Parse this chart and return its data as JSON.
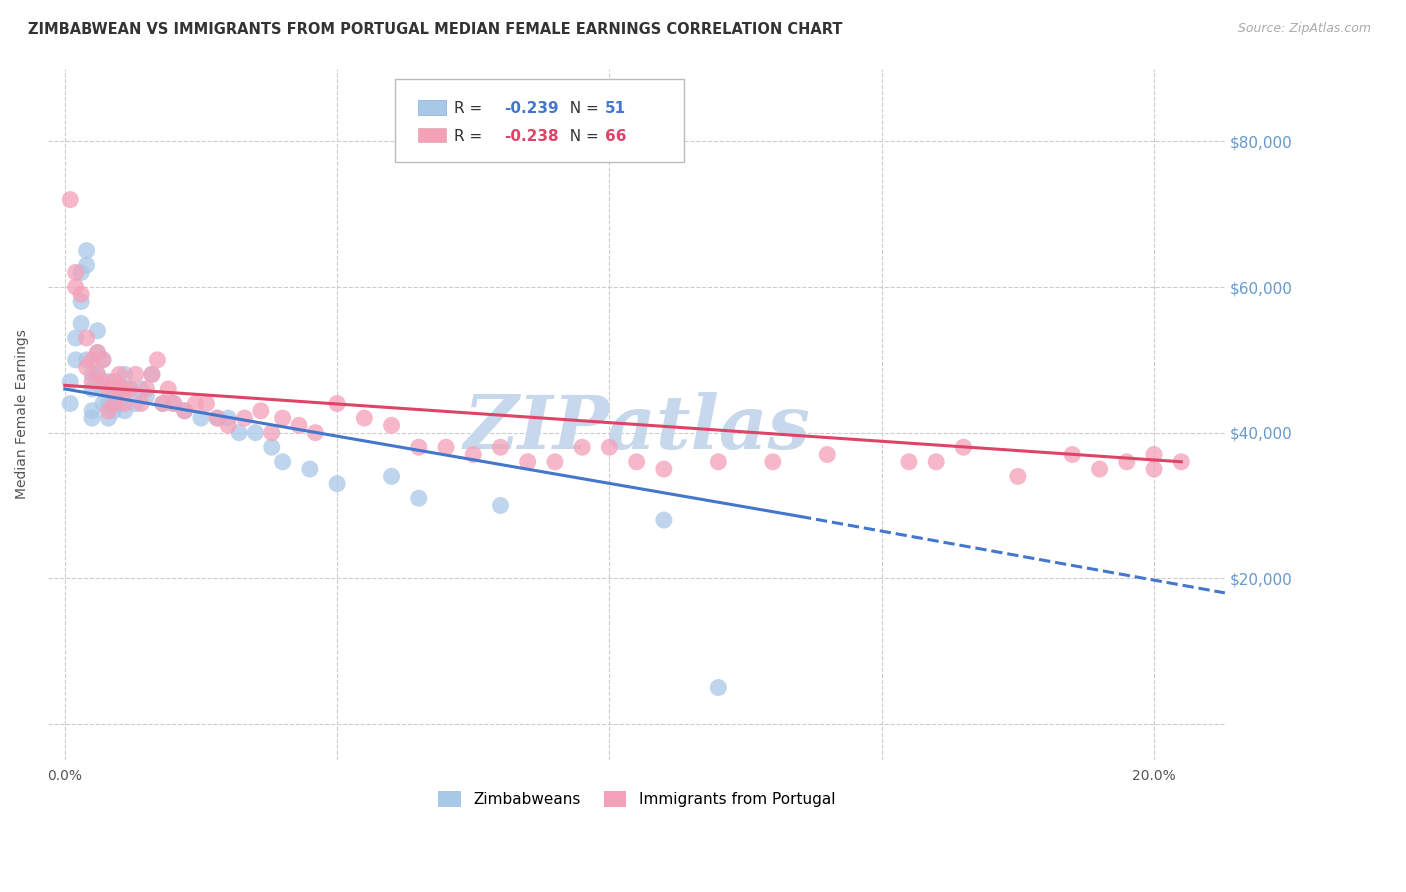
{
  "title": "ZIMBABWEAN VS IMMIGRANTS FROM PORTUGAL MEDIAN FEMALE EARNINGS CORRELATION CHART",
  "source": "Source: ZipAtlas.com",
  "ylabel": "Median Female Earnings",
  "x_ticks": [
    0.0,
    0.05,
    0.1,
    0.15,
    0.2
  ],
  "x_tick_labels": [
    "0.0%",
    "",
    "",
    "",
    "20.0%"
  ],
  "y_ticks": [
    0,
    20000,
    40000,
    60000,
    80000
  ],
  "y_tick_labels": [
    "",
    "$20,000",
    "$40,000",
    "$60,000",
    "$80,000"
  ],
  "xlim": [
    -0.003,
    0.213
  ],
  "ylim": [
    -5000,
    90000
  ],
  "legend_entries": [
    {
      "label": "Zimbabweans",
      "color": "#a8c8e8",
      "R": "-0.239",
      "N": "51"
    },
    {
      "label": "Immigrants from Portugal",
      "color": "#f4a0b8",
      "R": "-0.238",
      "N": "66"
    }
  ],
  "background_color": "#ffffff",
  "grid_color": "#cccccc",
  "watermark": "ZIPatlas",
  "watermark_color": "#c8d8ec",
  "title_color": "#333333",
  "right_label_color": "#6699cc",
  "zim_scatter_x": [
    0.001,
    0.001,
    0.002,
    0.002,
    0.003,
    0.003,
    0.003,
    0.004,
    0.004,
    0.004,
    0.005,
    0.005,
    0.005,
    0.005,
    0.006,
    0.006,
    0.006,
    0.007,
    0.007,
    0.007,
    0.008,
    0.008,
    0.008,
    0.009,
    0.009,
    0.01,
    0.01,
    0.011,
    0.011,
    0.012,
    0.013,
    0.014,
    0.015,
    0.016,
    0.018,
    0.02,
    0.022,
    0.025,
    0.028,
    0.03,
    0.032,
    0.035,
    0.038,
    0.04,
    0.045,
    0.05,
    0.06,
    0.065,
    0.08,
    0.11,
    0.12
  ],
  "zim_scatter_y": [
    44000,
    47000,
    50000,
    53000,
    55000,
    58000,
    62000,
    63000,
    65000,
    50000,
    46000,
    48000,
    43000,
    42000,
    51000,
    54000,
    48000,
    50000,
    46000,
    44000,
    47000,
    44000,
    42000,
    45000,
    43000,
    46000,
    44000,
    48000,
    43000,
    46000,
    44000,
    46000,
    45000,
    48000,
    44000,
    44000,
    43000,
    42000,
    42000,
    42000,
    40000,
    40000,
    38000,
    36000,
    35000,
    33000,
    34000,
    31000,
    30000,
    28000,
    5000
  ],
  "port_scatter_x": [
    0.001,
    0.002,
    0.002,
    0.003,
    0.004,
    0.004,
    0.005,
    0.005,
    0.006,
    0.006,
    0.007,
    0.007,
    0.008,
    0.008,
    0.009,
    0.009,
    0.01,
    0.01,
    0.011,
    0.011,
    0.012,
    0.013,
    0.014,
    0.015,
    0.016,
    0.017,
    0.018,
    0.019,
    0.02,
    0.022,
    0.024,
    0.026,
    0.028,
    0.03,
    0.033,
    0.036,
    0.038,
    0.04,
    0.043,
    0.046,
    0.05,
    0.055,
    0.06,
    0.065,
    0.07,
    0.075,
    0.08,
    0.085,
    0.09,
    0.095,
    0.1,
    0.105,
    0.11,
    0.12,
    0.13,
    0.14,
    0.155,
    0.16,
    0.165,
    0.175,
    0.185,
    0.19,
    0.195,
    0.2,
    0.2,
    0.205
  ],
  "port_scatter_y": [
    72000,
    62000,
    60000,
    59000,
    53000,
    49000,
    50000,
    47000,
    51000,
    48000,
    50000,
    47000,
    46000,
    43000,
    47000,
    44000,
    46000,
    48000,
    44000,
    46000,
    46000,
    48000,
    44000,
    46000,
    48000,
    50000,
    44000,
    46000,
    44000,
    43000,
    44000,
    44000,
    42000,
    41000,
    42000,
    43000,
    40000,
    42000,
    41000,
    40000,
    44000,
    42000,
    41000,
    38000,
    38000,
    37000,
    38000,
    36000,
    36000,
    38000,
    38000,
    36000,
    35000,
    36000,
    36000,
    37000,
    36000,
    36000,
    38000,
    34000,
    37000,
    35000,
    36000,
    35000,
    37000,
    36000
  ],
  "zim_trend": [
    0.0,
    0.135,
    46000,
    28500
  ],
  "zim_dash": [
    0.135,
    0.213,
    28500,
    18000
  ],
  "port_trend": [
    0.0,
    0.205,
    46500,
    36000
  ],
  "zim_line_color": "#4477cc",
  "port_line_color": "#dd4466",
  "scatter_size": 150,
  "scatter_alpha": 0.75
}
